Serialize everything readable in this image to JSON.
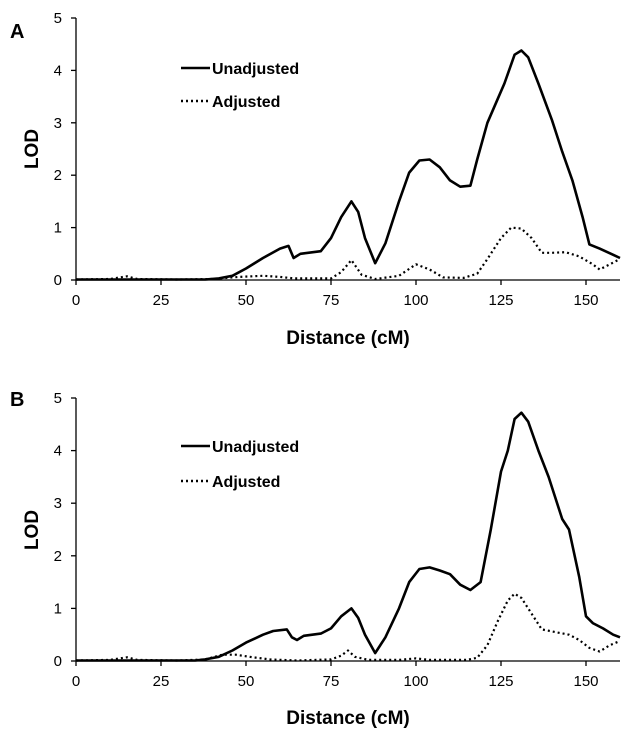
{
  "chart_data": [
    {
      "type": "line",
      "panel": "A",
      "xlabel": "Distance (cM)",
      "ylabel": "LOD",
      "xlim": [
        0,
        160
      ],
      "ylim": [
        0,
        5
      ],
      "x_ticks": [
        "0",
        "25",
        "50",
        "75",
        "100",
        "125",
        "150"
      ],
      "y_ticks": [
        "0",
        "1",
        "2",
        "3",
        "4",
        "5"
      ],
      "grid": false,
      "legend_position": "top-center",
      "series": [
        {
          "name": "Unadjusted",
          "style": "solid",
          "points": [
            [
              0,
              0.01
            ],
            [
              20,
              0.01
            ],
            [
              38,
              0.01
            ],
            [
              42,
              0.03
            ],
            [
              46,
              0.08
            ],
            [
              50,
              0.22
            ],
            [
              55,
              0.42
            ],
            [
              60,
              0.6
            ],
            [
              62.5,
              0.65
            ],
            [
              64,
              0.42
            ],
            [
              66,
              0.5
            ],
            [
              72,
              0.55
            ],
            [
              75,
              0.8
            ],
            [
              78,
              1.2
            ],
            [
              81,
              1.5
            ],
            [
              83,
              1.3
            ],
            [
              85,
              0.8
            ],
            [
              88,
              0.32
            ],
            [
              91,
              0.7
            ],
            [
              95,
              1.5
            ],
            [
              98,
              2.05
            ],
            [
              101,
              2.28
            ],
            [
              104,
              2.3
            ],
            [
              107,
              2.15
            ],
            [
              110,
              1.9
            ],
            [
              113,
              1.78
            ],
            [
              116,
              1.8
            ],
            [
              118,
              2.3
            ],
            [
              121,
              3.0
            ],
            [
              124,
              3.45
            ],
            [
              126,
              3.75
            ],
            [
              129,
              4.3
            ],
            [
              131,
              4.38
            ],
            [
              133,
              4.25
            ],
            [
              136,
              3.75
            ],
            [
              140,
              3.05
            ],
            [
              143,
              2.45
            ],
            [
              146,
              1.9
            ],
            [
              149,
              1.2
            ],
            [
              151,
              0.68
            ],
            [
              154,
              0.6
            ],
            [
              158,
              0.48
            ],
            [
              160,
              0.42
            ]
          ]
        },
        {
          "name": "Adjusted",
          "style": "dotted",
          "points": [
            [
              0,
              0.01
            ],
            [
              10,
              0.02
            ],
            [
              15,
              0.07
            ],
            [
              18,
              0.02
            ],
            [
              30,
              0.01
            ],
            [
              40,
              0.02
            ],
            [
              48,
              0.06
            ],
            [
              55,
              0.08
            ],
            [
              60,
              0.06
            ],
            [
              64,
              0.03
            ],
            [
              75,
              0.03
            ],
            [
              78,
              0.15
            ],
            [
              81,
              0.38
            ],
            [
              84,
              0.1
            ],
            [
              88,
              0.02
            ],
            [
              95,
              0.08
            ],
            [
              100,
              0.3
            ],
            [
              104,
              0.2
            ],
            [
              108,
              0.05
            ],
            [
              114,
              0.04
            ],
            [
              118,
              0.12
            ],
            [
              121,
              0.4
            ],
            [
              125,
              0.8
            ],
            [
              128,
              1.0
            ],
            [
              131,
              0.98
            ],
            [
              134,
              0.8
            ],
            [
              137,
              0.52
            ],
            [
              140,
              0.52
            ],
            [
              144,
              0.53
            ],
            [
              148,
              0.45
            ],
            [
              152,
              0.3
            ],
            [
              154,
              0.2
            ],
            [
              157,
              0.3
            ],
            [
              160,
              0.4
            ]
          ]
        }
      ]
    },
    {
      "type": "line",
      "panel": "B",
      "xlabel": "Distance (cM)",
      "ylabel": "LOD",
      "xlim": [
        0,
        160
      ],
      "ylim": [
        0,
        5
      ],
      "x_ticks": [
        "0",
        "25",
        "50",
        "75",
        "100",
        "125",
        "150"
      ],
      "y_ticks": [
        "0",
        "1",
        "2",
        "3",
        "4",
        "5"
      ],
      "grid": false,
      "legend_position": "top-center",
      "series": [
        {
          "name": "Unadjusted",
          "style": "solid",
          "points": [
            [
              0,
              0.01
            ],
            [
              20,
              0.01
            ],
            [
              35,
              0.01
            ],
            [
              38,
              0.03
            ],
            [
              42,
              0.08
            ],
            [
              46,
              0.2
            ],
            [
              50,
              0.35
            ],
            [
              55,
              0.5
            ],
            [
              58,
              0.57
            ],
            [
              62,
              0.6
            ],
            [
              63.5,
              0.45
            ],
            [
              65,
              0.4
            ],
            [
              67,
              0.48
            ],
            [
              72,
              0.52
            ],
            [
              75,
              0.62
            ],
            [
              78,
              0.85
            ],
            [
              81,
              1.0
            ],
            [
              83,
              0.82
            ],
            [
              85,
              0.5
            ],
            [
              88,
              0.15
            ],
            [
              91,
              0.45
            ],
            [
              95,
              1.0
            ],
            [
              98,
              1.5
            ],
            [
              101,
              1.75
            ],
            [
              104,
              1.78
            ],
            [
              107,
              1.72
            ],
            [
              110,
              1.65
            ],
            [
              113,
              1.45
            ],
            [
              116,
              1.35
            ],
            [
              119,
              1.5
            ],
            [
              122,
              2.5
            ],
            [
              125,
              3.6
            ],
            [
              127,
              4.0
            ],
            [
              129,
              4.6
            ],
            [
              131,
              4.72
            ],
            [
              133,
              4.55
            ],
            [
              136,
              4.0
            ],
            [
              139,
              3.5
            ],
            [
              143,
              2.7
            ],
            [
              145,
              2.5
            ],
            [
              148,
              1.6
            ],
            [
              150,
              0.85
            ],
            [
              152,
              0.72
            ],
            [
              155,
              0.62
            ],
            [
              158,
              0.5
            ],
            [
              160,
              0.45
            ]
          ]
        },
        {
          "name": "Adjusted",
          "style": "dotted",
          "points": [
            [
              0,
              0.01
            ],
            [
              10,
              0.02
            ],
            [
              15,
              0.07
            ],
            [
              18,
              0.02
            ],
            [
              30,
              0.01
            ],
            [
              38,
              0.03
            ],
            [
              43,
              0.12
            ],
            [
              47,
              0.12
            ],
            [
              52,
              0.07
            ],
            [
              57,
              0.03
            ],
            [
              65,
              0.01
            ],
            [
              75,
              0.03
            ],
            [
              78,
              0.1
            ],
            [
              80,
              0.2
            ],
            [
              82,
              0.08
            ],
            [
              86,
              0.02
            ],
            [
              95,
              0.02
            ],
            [
              100,
              0.05
            ],
            [
              104,
              0.02
            ],
            [
              115,
              0.02
            ],
            [
              118,
              0.06
            ],
            [
              121,
              0.3
            ],
            [
              124,
              0.75
            ],
            [
              127,
              1.15
            ],
            [
              129,
              1.28
            ],
            [
              131,
              1.2
            ],
            [
              134,
              0.9
            ],
            [
              137,
              0.6
            ],
            [
              141,
              0.55
            ],
            [
              145,
              0.5
            ],
            [
              148,
              0.4
            ],
            [
              151,
              0.25
            ],
            [
              154,
              0.18
            ],
            [
              157,
              0.3
            ],
            [
              160,
              0.38
            ]
          ]
        }
      ]
    }
  ]
}
